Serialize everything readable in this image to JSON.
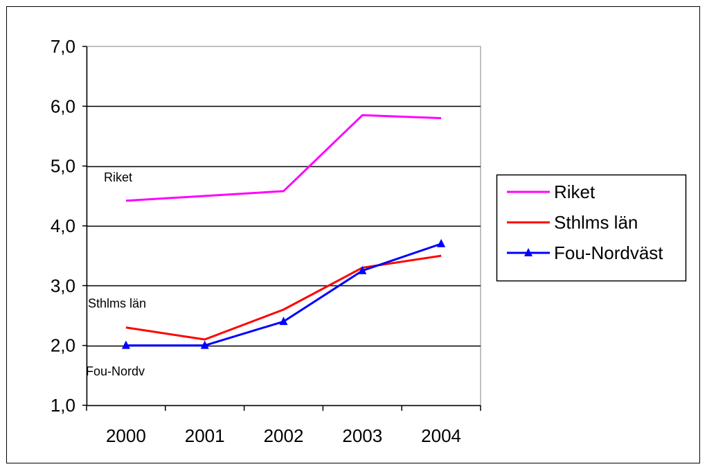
{
  "chart_data": {
    "type": "line",
    "categories": [
      "2000",
      "2001",
      "2002",
      "2003",
      "2004"
    ],
    "ylim": [
      1.0,
      7.0
    ],
    "yticks": [
      "1,0",
      "2,0",
      "3,0",
      "4,0",
      "5,0",
      "6,0",
      "7,0"
    ],
    "grid": true,
    "legend_position": "right",
    "series": [
      {
        "name": "Riket",
        "values": [
          4.42,
          4.5,
          4.58,
          5.85,
          5.8
        ],
        "color": "#ff00ff",
        "marker": "none"
      },
      {
        "name": "Sthlms län",
        "values": [
          2.3,
          2.1,
          2.6,
          3.3,
          3.5
        ],
        "color": "#ff0000",
        "marker": "none"
      },
      {
        "name": "Fou-Nordväst",
        "values": [
          2.0,
          2.0,
          2.4,
          3.25,
          3.7
        ],
        "color": "#0000ff",
        "marker": "triangle"
      }
    ],
    "annotations": [
      "Riket",
      "Sthlms län",
      "Fou-Nordv"
    ]
  }
}
